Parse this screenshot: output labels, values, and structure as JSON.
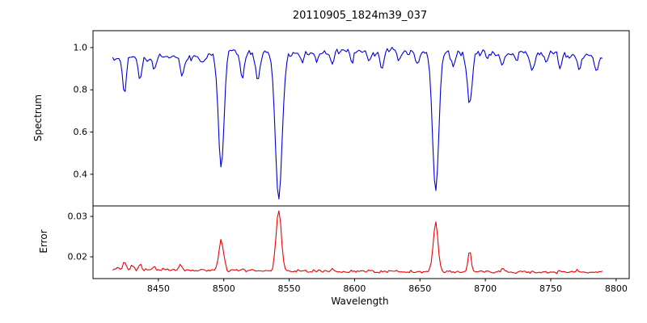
{
  "chart_data": {
    "type": "line",
    "title": "20110905_1824m39_037",
    "xlabel": "Wavelength",
    "xlim": [
      8400,
      8810
    ],
    "x_ticks": [
      8450,
      8500,
      8550,
      8600,
      8650,
      8700,
      8750,
      8800
    ],
    "x_tick_labels": [
      "8450",
      "8500",
      "8550",
      "8600",
      "8650",
      "8700",
      "8750",
      "8800"
    ],
    "x_range_data": [
      8415,
      8790
    ],
    "sample_step": 1.2,
    "background": "#ffffff",
    "axis_color": "#000000",
    "legend": "none",
    "grid": false,
    "panels": [
      {
        "name": "spectrum",
        "ylabel": "Spectrum",
        "ylim": [
          0.25,
          1.08
        ],
        "y_ticks": [
          0.4,
          0.6,
          0.8,
          1.0
        ],
        "y_tick_labels": [
          "0.4",
          "0.6",
          "0.8",
          "1.0"
        ],
        "color": "#0000dd",
        "noise_amp": 0.018,
        "continuum": [
          [
            8415,
            0.94
          ],
          [
            8428,
            0.96
          ],
          [
            8440,
            0.95
          ],
          [
            8452,
            0.96
          ],
          [
            8465,
            0.96
          ],
          [
            8478,
            0.95
          ],
          [
            8490,
            0.97
          ],
          [
            8502,
            0.99
          ],
          [
            8515,
            0.98
          ],
          [
            8528,
            0.97
          ],
          [
            8540,
            0.99
          ],
          [
            8552,
            0.97
          ],
          [
            8565,
            0.98
          ],
          [
            8578,
            0.97
          ],
          [
            8590,
            0.99
          ],
          [
            8602,
            0.98
          ],
          [
            8615,
            0.97
          ],
          [
            8628,
            0.99
          ],
          [
            8640,
            0.98
          ],
          [
            8652,
            0.98
          ],
          [
            8665,
            0.99
          ],
          [
            8678,
            0.97
          ],
          [
            8690,
            0.97
          ],
          [
            8702,
            0.98
          ],
          [
            8715,
            0.97
          ],
          [
            8728,
            0.98
          ],
          [
            8740,
            0.97
          ],
          [
            8752,
            0.98
          ],
          [
            8765,
            0.96
          ],
          [
            8778,
            0.97
          ],
          [
            8790,
            0.95
          ]
        ],
        "absorption_lines": [
          [
            8424,
            0.78,
            1.3
          ],
          [
            8436,
            0.85,
            1.2
          ],
          [
            8447,
            0.89,
            1.2
          ],
          [
            8468,
            0.87,
            1.6
          ],
          [
            8484,
            0.93,
            1.2
          ],
          [
            8498,
            0.43,
            2.2
          ],
          [
            8514,
            0.86,
            1.6
          ],
          [
            8526,
            0.84,
            1.6
          ],
          [
            8542,
            0.28,
            2.6
          ],
          [
            8560,
            0.93,
            1.2
          ],
          [
            8571,
            0.94,
            1.1
          ],
          [
            8583,
            0.92,
            1.4
          ],
          [
            8598,
            0.93,
            1.2
          ],
          [
            8611,
            0.94,
            1.1
          ],
          [
            8621,
            0.9,
            1.4
          ],
          [
            8634,
            0.93,
            1.1
          ],
          [
            8648,
            0.92,
            1.2
          ],
          [
            8662,
            0.32,
            2.4
          ],
          [
            8675,
            0.91,
            1.2
          ],
          [
            8688,
            0.73,
            1.8
          ],
          [
            8702,
            0.94,
            1.1
          ],
          [
            8713,
            0.92,
            1.2
          ],
          [
            8724,
            0.94,
            1.1
          ],
          [
            8736,
            0.89,
            1.6
          ],
          [
            8747,
            0.93,
            1.1
          ],
          [
            8757,
            0.91,
            1.2
          ],
          [
            8772,
            0.9,
            1.4
          ],
          [
            8785,
            0.89,
            1.3
          ]
        ]
      },
      {
        "name": "error",
        "ylabel": "Error",
        "ylim": [
          0.0146,
          0.0326
        ],
        "y_ticks": [
          0.02,
          0.03
        ],
        "y_tick_labels": [
          "0.02",
          "0.03"
        ],
        "color": "#ee0000",
        "noise_amp": 0.00045,
        "baseline": [
          [
            8415,
            0.017
          ],
          [
            8440,
            0.0169
          ],
          [
            8470,
            0.0167
          ],
          [
            8500,
            0.0166
          ],
          [
            8530,
            0.0165
          ],
          [
            8560,
            0.0165
          ],
          [
            8590,
            0.0164
          ],
          [
            8620,
            0.0164
          ],
          [
            8650,
            0.0163
          ],
          [
            8680,
            0.0163
          ],
          [
            8710,
            0.0163
          ],
          [
            8740,
            0.0162
          ],
          [
            8770,
            0.0162
          ],
          [
            8790,
            0.0161
          ]
        ],
        "peaks": [
          [
            8424,
            0.0186,
            1.2
          ],
          [
            8430,
            0.0182,
            1.0
          ],
          [
            8436,
            0.018,
            1.0
          ],
          [
            8447,
            0.0176,
            1.0
          ],
          [
            8467,
            0.0179,
            1.2
          ],
          [
            8498,
            0.024,
            1.8
          ],
          [
            8514,
            0.0172,
            1.0
          ],
          [
            8542,
            0.0315,
            2.0
          ],
          [
            8583,
            0.017,
            1.0
          ],
          [
            8662,
            0.0285,
            1.8
          ],
          [
            8688,
            0.0216,
            1.2
          ],
          [
            8713,
            0.017,
            1.0
          ],
          [
            8770,
            0.0168,
            1.0
          ]
        ]
      }
    ]
  }
}
